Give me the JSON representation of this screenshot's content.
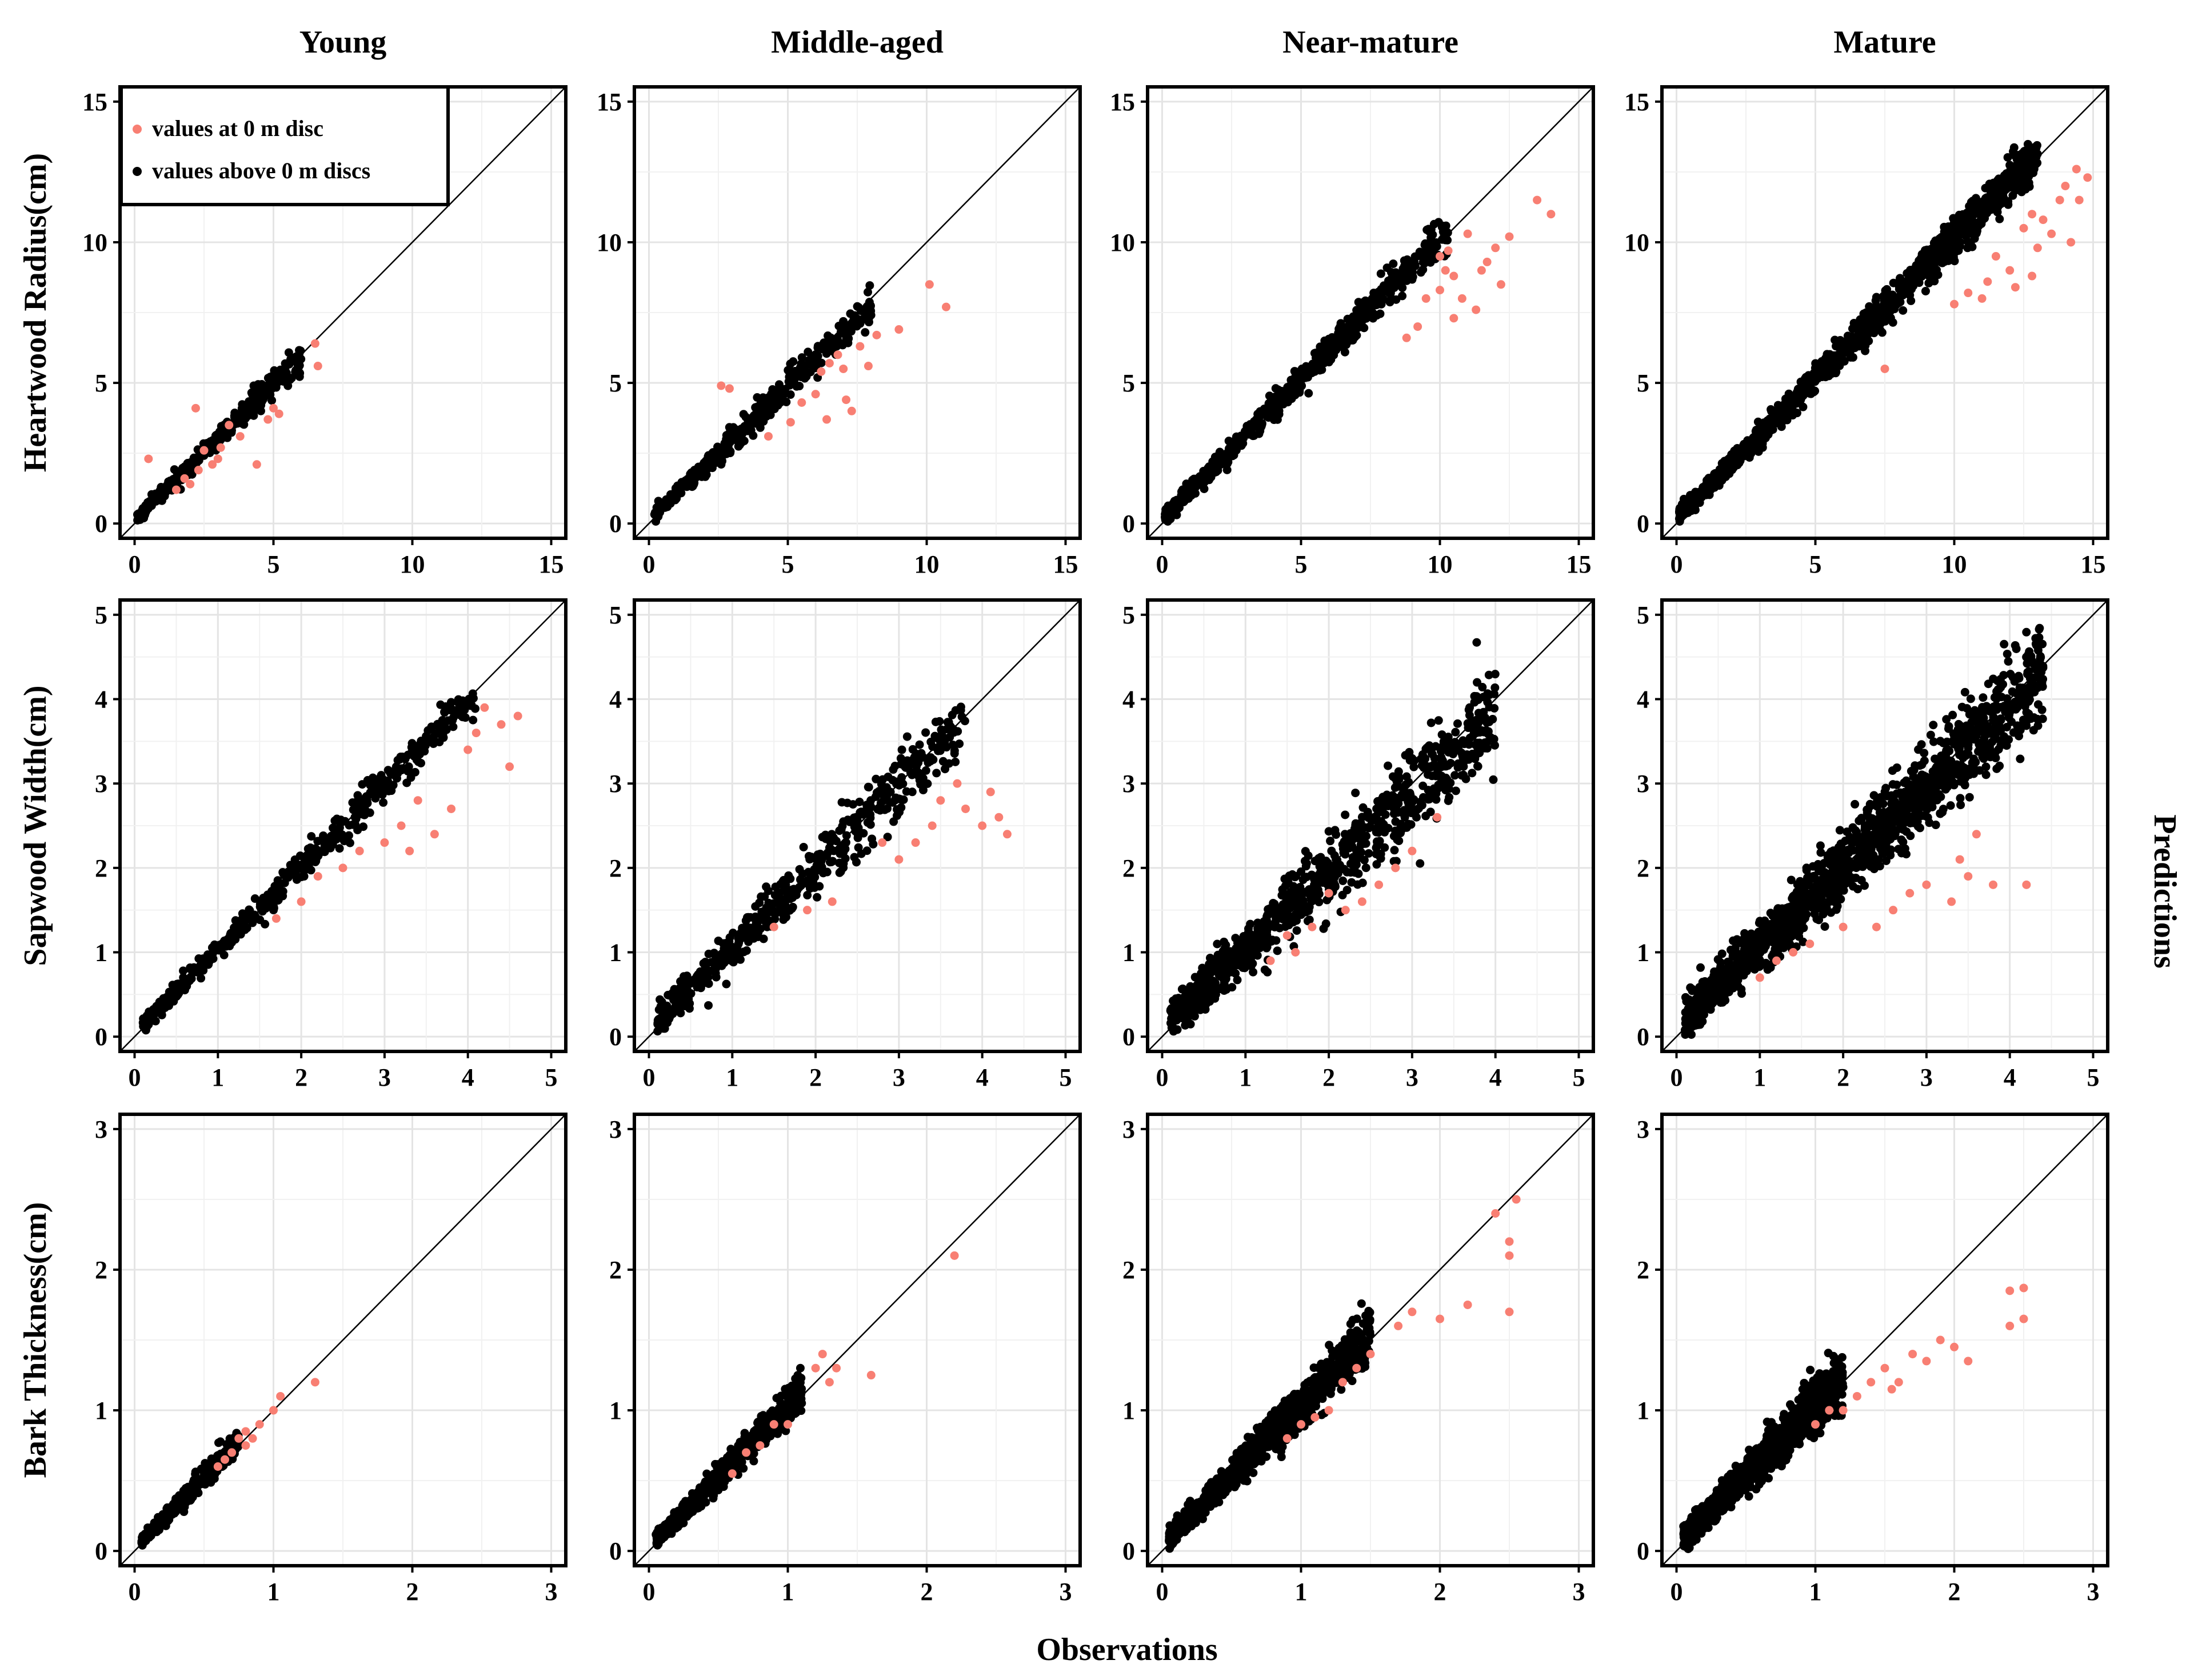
{
  "chart_data": {
    "type": "scatter",
    "title": "",
    "xlabel": "Observations",
    "ylabel": "Predictions",
    "columns": [
      "Young",
      "Middle-aged",
      "Near-mature",
      "Mature"
    ],
    "rows": [
      {
        "name": "Heartwood Radius(cm)",
        "lim": [
          0,
          15
        ],
        "ticks": [
          0,
          5,
          10,
          15
        ],
        "tick_labels": [
          "0",
          "5",
          "10",
          "15"
        ]
      },
      {
        "name": "Sapwood Width(cm)",
        "lim": [
          0,
          5
        ],
        "ticks": [
          0,
          1,
          2,
          3,
          4,
          5
        ],
        "tick_labels": [
          "0",
          "1",
          "2",
          "3",
          "4",
          "5"
        ]
      },
      {
        "name": "Bark Thickness(cm)",
        "lim": [
          0,
          3
        ],
        "ticks": [
          0,
          1,
          2,
          3
        ],
        "tick_labels": [
          "0",
          "1",
          "2",
          "3"
        ]
      }
    ],
    "reference_line": "y = x",
    "grid": true,
    "legend": {
      "position": "top-left of first panel",
      "entries": [
        {
          "label": "values at 0 m disc",
          "color": "#f87f73"
        },
        {
          "label": "values above 0 m discs",
          "color": "#000000"
        }
      ]
    },
    "series_colors": {
      "disc0": "#f87f73",
      "above": "#000000"
    },
    "panels": [
      {
        "row": 0,
        "col": 0,
        "above": {
          "n": 320,
          "xmin": 0.1,
          "xmax": 6.0,
          "bias": 0.97,
          "sd": 0.3
        },
        "disc0": [
          [
            0.5,
            2.3
          ],
          [
            2.2,
            4.1
          ],
          [
            2.5,
            2.6
          ],
          [
            2.8,
            2.1
          ],
          [
            3.0,
            2.3
          ],
          [
            3.4,
            3.5
          ],
          [
            3.8,
            3.1
          ],
          [
            4.4,
            2.1
          ],
          [
            4.8,
            3.7
          ],
          [
            5.0,
            4.1
          ],
          [
            5.2,
            3.9
          ],
          [
            6.6,
            5.6
          ],
          [
            6.5,
            6.4
          ],
          [
            1.8,
            1.6
          ],
          [
            2.0,
            1.4
          ],
          [
            1.5,
            1.2
          ],
          [
            3.1,
            2.7
          ],
          [
            2.3,
            1.9
          ]
        ]
      },
      {
        "row": 0,
        "col": 1,
        "above": {
          "n": 420,
          "xmin": 0.2,
          "xmax": 8.0,
          "bias": 0.95,
          "sd": 0.35
        },
        "disc0": [
          [
            2.6,
            4.9
          ],
          [
            2.9,
            4.8
          ],
          [
            4.3,
            3.1
          ],
          [
            5.1,
            3.6
          ],
          [
            6.0,
            4.6
          ],
          [
            6.2,
            5.4
          ],
          [
            6.5,
            5.7
          ],
          [
            6.8,
            6.0
          ],
          [
            7.0,
            5.5
          ],
          [
            7.1,
            4.4
          ],
          [
            7.3,
            4.0
          ],
          [
            7.9,
            5.6
          ],
          [
            8.2,
            6.7
          ],
          [
            9.0,
            6.9
          ],
          [
            10.1,
            8.5
          ],
          [
            10.7,
            7.7
          ],
          [
            5.5,
            4.3
          ],
          [
            6.4,
            3.7
          ],
          [
            7.6,
            6.3
          ]
        ]
      },
      {
        "row": 0,
        "col": 2,
        "above": {
          "n": 700,
          "xmin": 0.1,
          "xmax": 10.3,
          "bias": 1.0,
          "sd": 0.35
        },
        "disc0": [
          [
            10.0,
            9.5
          ],
          [
            10.3,
            9.7
          ],
          [
            10.5,
            8.8
          ],
          [
            10.8,
            8.0
          ],
          [
            11.0,
            10.3
          ],
          [
            11.3,
            7.6
          ],
          [
            11.5,
            9.0
          ],
          [
            12.0,
            9.8
          ],
          [
            12.2,
            8.5
          ],
          [
            10.5,
            7.3
          ],
          [
            9.5,
            8.0
          ],
          [
            10.0,
            8.3
          ],
          [
            13.5,
            11.5
          ],
          [
            14.0,
            11.0
          ],
          [
            9.2,
            7.0
          ],
          [
            8.8,
            6.6
          ],
          [
            10.2,
            9.0
          ],
          [
            11.7,
            9.3
          ],
          [
            12.5,
            10.2
          ]
        ]
      },
      {
        "row": 0,
        "col": 3,
        "above": {
          "n": 1100,
          "xmin": 0.1,
          "xmax": 13.0,
          "bias": 1.0,
          "sd": 0.4
        },
        "disc0": [
          [
            10.5,
            8.2
          ],
          [
            11.0,
            8.0
          ],
          [
            11.5,
            9.5
          ],
          [
            12.0,
            9.0
          ],
          [
            12.5,
            10.5
          ],
          [
            12.8,
            11.0
          ],
          [
            13.0,
            9.8
          ],
          [
            13.5,
            10.3
          ],
          [
            13.8,
            11.5
          ],
          [
            14.0,
            12.0
          ],
          [
            14.2,
            10.0
          ],
          [
            14.5,
            11.5
          ],
          [
            14.8,
            12.3
          ],
          [
            10.0,
            7.8
          ],
          [
            11.2,
            8.6
          ],
          [
            12.2,
            8.4
          ],
          [
            13.2,
            10.8
          ],
          [
            14.4,
            12.6
          ],
          [
            7.5,
            5.5
          ],
          [
            12.8,
            8.8
          ]
        ]
      },
      {
        "row": 1,
        "col": 0,
        "above": {
          "n": 480,
          "xmin": 0.1,
          "xmax": 4.1,
          "bias": 0.98,
          "sd": 0.13
        },
        "disc0": [
          [
            3.0,
            2.3
          ],
          [
            3.2,
            2.5
          ],
          [
            3.4,
            2.8
          ],
          [
            3.6,
            2.4
          ],
          [
            4.0,
            3.4
          ],
          [
            4.1,
            3.6
          ],
          [
            4.2,
            3.9
          ],
          [
            4.4,
            3.7
          ],
          [
            4.5,
            3.2
          ],
          [
            4.6,
            3.8
          ],
          [
            2.5,
            2.0
          ],
          [
            2.7,
            2.2
          ],
          [
            2.0,
            1.6
          ],
          [
            2.2,
            1.9
          ],
          [
            1.7,
            1.4
          ],
          [
            3.8,
            2.7
          ],
          [
            3.3,
            2.2
          ]
        ]
      },
      {
        "row": 1,
        "col": 1,
        "above": {
          "n": 520,
          "xmin": 0.1,
          "xmax": 3.8,
          "bias": 0.96,
          "sd": 0.22
        },
        "disc0": [
          [
            3.2,
            2.3
          ],
          [
            3.4,
            2.5
          ],
          [
            3.5,
            2.8
          ],
          [
            3.7,
            3.0
          ],
          [
            3.8,
            2.7
          ],
          [
            4.0,
            2.5
          ],
          [
            4.1,
            2.9
          ],
          [
            4.2,
            2.6
          ],
          [
            4.3,
            2.4
          ],
          [
            3.0,
            2.1
          ],
          [
            2.8,
            2.3
          ],
          [
            2.2,
            1.6
          ],
          [
            1.9,
            1.5
          ],
          [
            1.5,
            1.3
          ]
        ]
      },
      {
        "row": 1,
        "col": 2,
        "above": {
          "n": 900,
          "xmin": 0.1,
          "xmax": 4.0,
          "bias": 0.92,
          "sd": 0.3
        },
        "disc0": [
          [
            1.5,
            1.2
          ],
          [
            1.8,
            1.3
          ],
          [
            2.2,
            1.5
          ],
          [
            2.6,
            1.8
          ],
          [
            2.8,
            2.0
          ],
          [
            3.0,
            2.2
          ],
          [
            1.3,
            0.9
          ],
          [
            1.6,
            1.0
          ],
          [
            2.0,
            1.7
          ],
          [
            2.4,
            1.6
          ],
          [
            3.3,
            2.6
          ]
        ]
      },
      {
        "row": 1,
        "col": 3,
        "above": {
          "n": 1500,
          "xmin": 0.1,
          "xmax": 4.4,
          "bias": 0.95,
          "sd": 0.3
        },
        "disc0": [
          [
            1.0,
            0.7
          ],
          [
            1.2,
            0.9
          ],
          [
            1.4,
            1.0
          ],
          [
            1.6,
            1.1
          ],
          [
            2.0,
            1.3
          ],
          [
            2.4,
            1.3
          ],
          [
            2.6,
            1.5
          ],
          [
            3.0,
            1.8
          ],
          [
            3.4,
            2.1
          ],
          [
            3.5,
            1.9
          ],
          [
            3.6,
            2.4
          ],
          [
            3.8,
            1.8
          ],
          [
            4.2,
            1.8
          ],
          [
            3.3,
            1.6
          ],
          [
            2.8,
            1.7
          ]
        ]
      },
      {
        "row": 2,
        "col": 0,
        "above": {
          "n": 380,
          "xmin": 0.05,
          "xmax": 0.75,
          "bias": 1.0,
          "sd": 0.05
        },
        "disc0": [
          [
            0.6,
            0.6
          ],
          [
            0.7,
            0.7
          ],
          [
            0.75,
            0.8
          ],
          [
            0.8,
            0.85
          ],
          [
            0.85,
            0.8
          ],
          [
            0.9,
            0.9
          ],
          [
            1.0,
            1.0
          ],
          [
            1.05,
            1.1
          ],
          [
            1.3,
            1.2
          ],
          [
            0.65,
            0.65
          ],
          [
            0.8,
            0.75
          ]
        ]
      },
      {
        "row": 2,
        "col": 1,
        "above": {
          "n": 550,
          "xmin": 0.05,
          "xmax": 1.1,
          "bias": 1.0,
          "sd": 0.07
        },
        "disc0": [
          [
            0.7,
            0.7
          ],
          [
            0.8,
            0.75
          ],
          [
            0.9,
            0.9
          ],
          [
            1.0,
            0.9
          ],
          [
            1.2,
            1.3
          ],
          [
            1.25,
            1.4
          ],
          [
            1.3,
            1.2
          ],
          [
            1.35,
            1.3
          ],
          [
            1.6,
            1.25
          ],
          [
            2.2,
            2.1
          ],
          [
            0.6,
            0.55
          ]
        ]
      },
      {
        "row": 2,
        "col": 2,
        "above": {
          "n": 900,
          "xmin": 0.05,
          "xmax": 1.5,
          "bias": 1.0,
          "sd": 0.1
        },
        "disc0": [
          [
            0.9,
            0.8
          ],
          [
            1.0,
            0.9
          ],
          [
            1.2,
            1.0
          ],
          [
            1.4,
            1.3
          ],
          [
            1.5,
            1.4
          ],
          [
            1.7,
            1.6
          ],
          [
            1.8,
            1.7
          ],
          [
            2.0,
            1.65
          ],
          [
            2.2,
            1.75
          ],
          [
            2.4,
            2.4
          ],
          [
            2.5,
            2.2
          ],
          [
            2.5,
            2.1
          ],
          [
            2.55,
            2.5
          ],
          [
            2.5,
            1.7
          ],
          [
            1.3,
            1.2
          ],
          [
            1.1,
            0.95
          ]
        ]
      },
      {
        "row": 2,
        "col": 3,
        "above": {
          "n": 1300,
          "xmin": 0.05,
          "xmax": 1.2,
          "bias": 1.0,
          "sd": 0.1
        },
        "disc0": [
          [
            1.0,
            0.9
          ],
          [
            1.1,
            1.0
          ],
          [
            1.2,
            1.0
          ],
          [
            1.3,
            1.1
          ],
          [
            1.4,
            1.2
          ],
          [
            1.5,
            1.3
          ],
          [
            1.6,
            1.2
          ],
          [
            1.7,
            1.4
          ],
          [
            1.8,
            1.35
          ],
          [
            2.0,
            1.45
          ],
          [
            2.1,
            1.35
          ],
          [
            2.4,
            1.6
          ],
          [
            2.5,
            1.65
          ],
          [
            2.5,
            1.87
          ],
          [
            2.4,
            1.85
          ],
          [
            1.9,
            1.5
          ],
          [
            1.55,
            1.15
          ]
        ]
      }
    ]
  }
}
